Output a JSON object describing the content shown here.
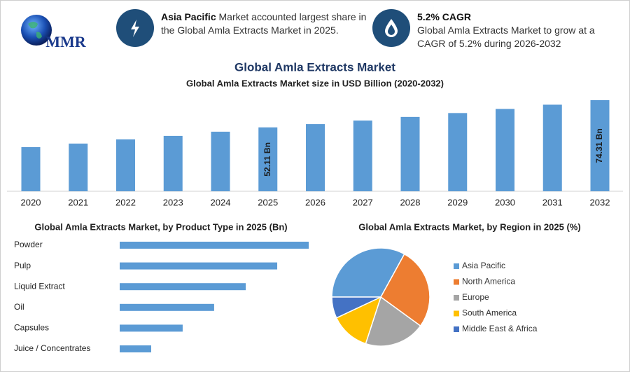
{
  "header": {
    "logo": "MMR",
    "highlights": [
      {
        "bold": "Asia Pacific",
        "text": "Market accounted largest share in the Global Amla Extracts Market in 2025."
      },
      {
        "bold": "5.2% CAGR",
        "text": "Global Amla Extracts Market to grow at a CAGR of 5.2% during 2026-2032"
      }
    ]
  },
  "title": "Global Amla Extracts Market",
  "chart_data": [
    {
      "type": "bar",
      "title": "Global Amla Extracts Market size in USD Billion (2020-2032)",
      "categories": [
        "2020",
        "2021",
        "2022",
        "2023",
        "2024",
        "2025",
        "2026",
        "2027",
        "2028",
        "2029",
        "2030",
        "2031",
        "2032"
      ],
      "values": [
        36.0,
        38.9,
        42.3,
        45.2,
        48.6,
        52.11,
        54.82,
        57.67,
        60.67,
        63.82,
        67.14,
        70.63,
        74.31
      ],
      "value_labels": [
        null,
        null,
        null,
        null,
        null,
        "52.11 Bn",
        null,
        null,
        null,
        null,
        null,
        null,
        "74.31 Bn"
      ],
      "color": "#5b9bd5"
    },
    {
      "type": "hbar",
      "title": "Global Amla Extracts Market, by Product Type in 2025 (Bn)",
      "categories": [
        "Powder",
        "Pulp",
        "Liquid Extract",
        "Oil",
        "Capsules",
        "Juice / Concentrates"
      ],
      "values": [
        14.89,
        12.41,
        9.93,
        7.44,
        4.96,
        2.48
      ],
      "color": "#5b9bd5"
    },
    {
      "type": "pie",
      "title": "Global Amla Extracts Market, by Region in 2025 (%)",
      "categories": [
        "Asia Pacific",
        "North America",
        "Europe",
        "South America",
        "Middle East & Africa"
      ],
      "values": [
        33,
        27,
        20,
        13,
        7
      ],
      "colors": [
        "#5b9bd5",
        "#ed7d31",
        "#a5a5a5",
        "#ffc000",
        "#4472c4"
      ],
      "legend": "right"
    }
  ]
}
